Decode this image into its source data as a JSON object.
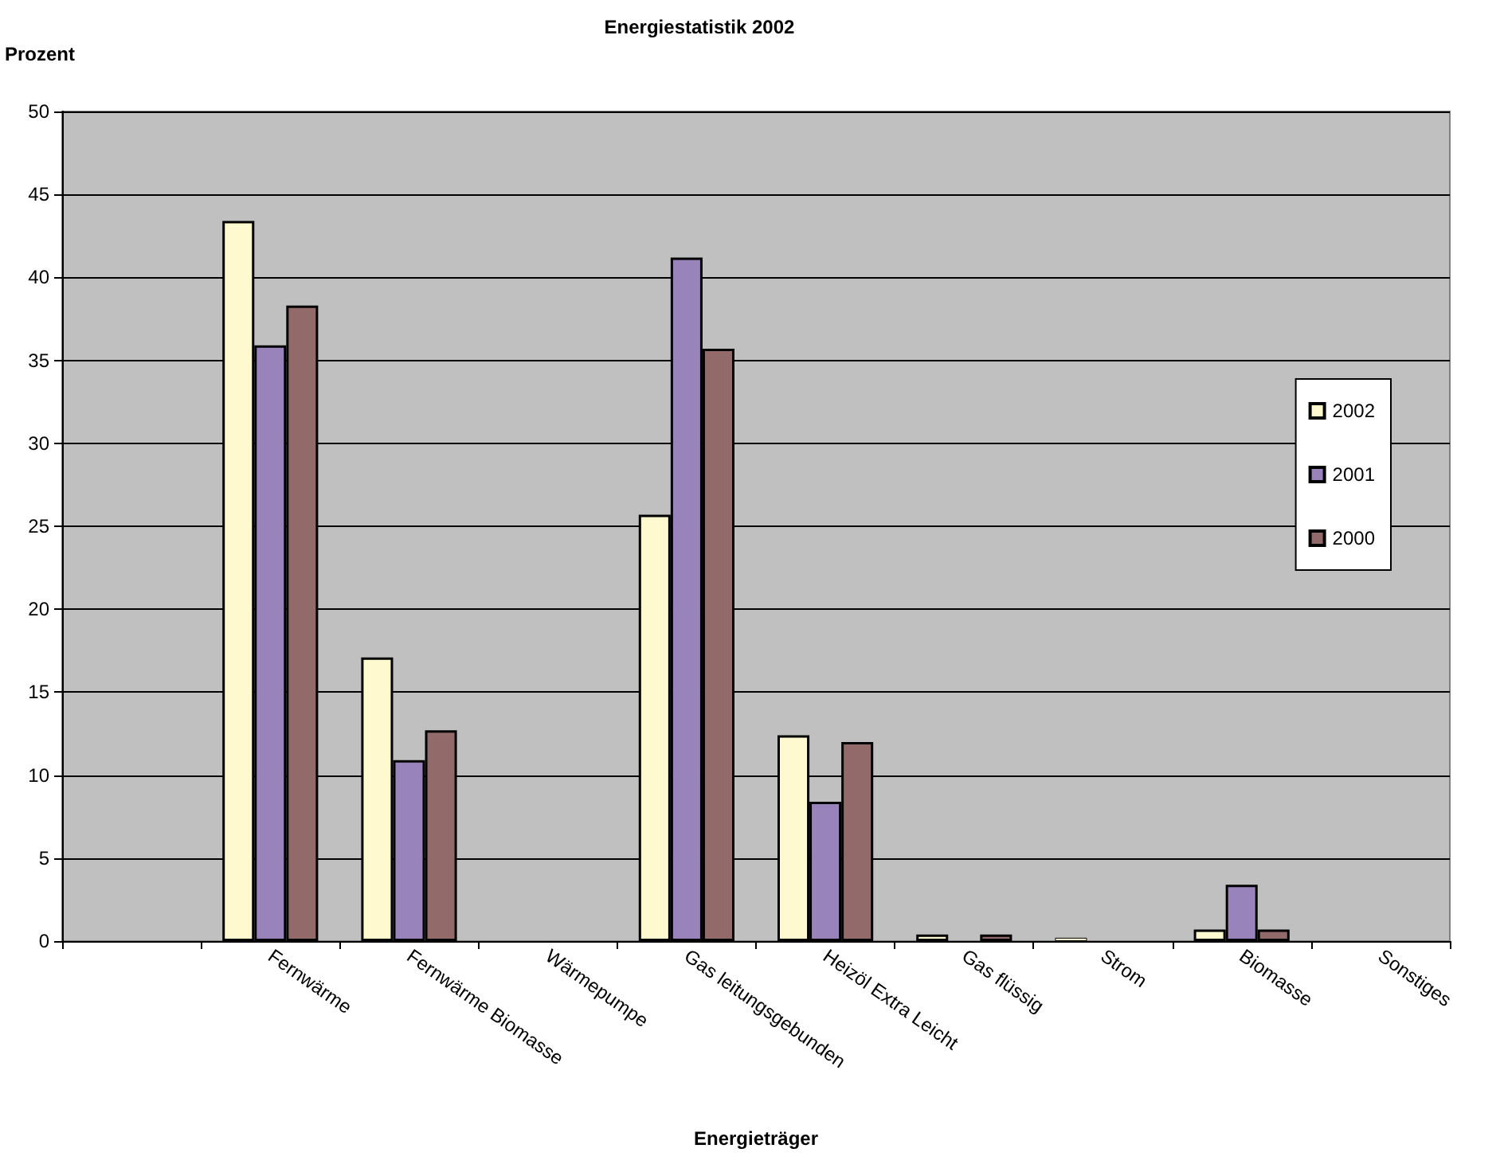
{
  "chart_data": {
    "type": "bar",
    "title": "Energiestatistik 2002",
    "xlabel": "Energieträger",
    "ylabel": "Prozent",
    "categories": [
      null,
      "Fernwärme",
      "Fernwärme Biomasse",
      "Wärmepumpe",
      "Gas leitungsgebunden",
      "Heizöl Extra Leicht",
      "Gas flüssig",
      "Strom",
      "Biomasse",
      "Sonstiges"
    ],
    "series": [
      {
        "name": "2002",
        "color": "#fff9d0",
        "values": [
          0,
          43.4,
          17.1,
          0,
          25.7,
          12.4,
          0.4,
          0.2,
          0.7,
          0
        ]
      },
      {
        "name": "2001",
        "color": "#9983bb",
        "values": [
          0,
          35.9,
          10.9,
          0,
          41.2,
          8.4,
          0,
          0,
          3.4,
          0
        ]
      },
      {
        "name": "2000",
        "color": "#936a6a",
        "values": [
          0,
          38.3,
          12.7,
          0,
          35.7,
          12.0,
          0.4,
          0,
          0.7,
          0
        ]
      }
    ],
    "ylim": [
      0,
      50
    ],
    "yticks": [
      0,
      5,
      10,
      15,
      20,
      25,
      30,
      35,
      40,
      45,
      50
    ],
    "grid": "y",
    "legend": "right"
  }
}
